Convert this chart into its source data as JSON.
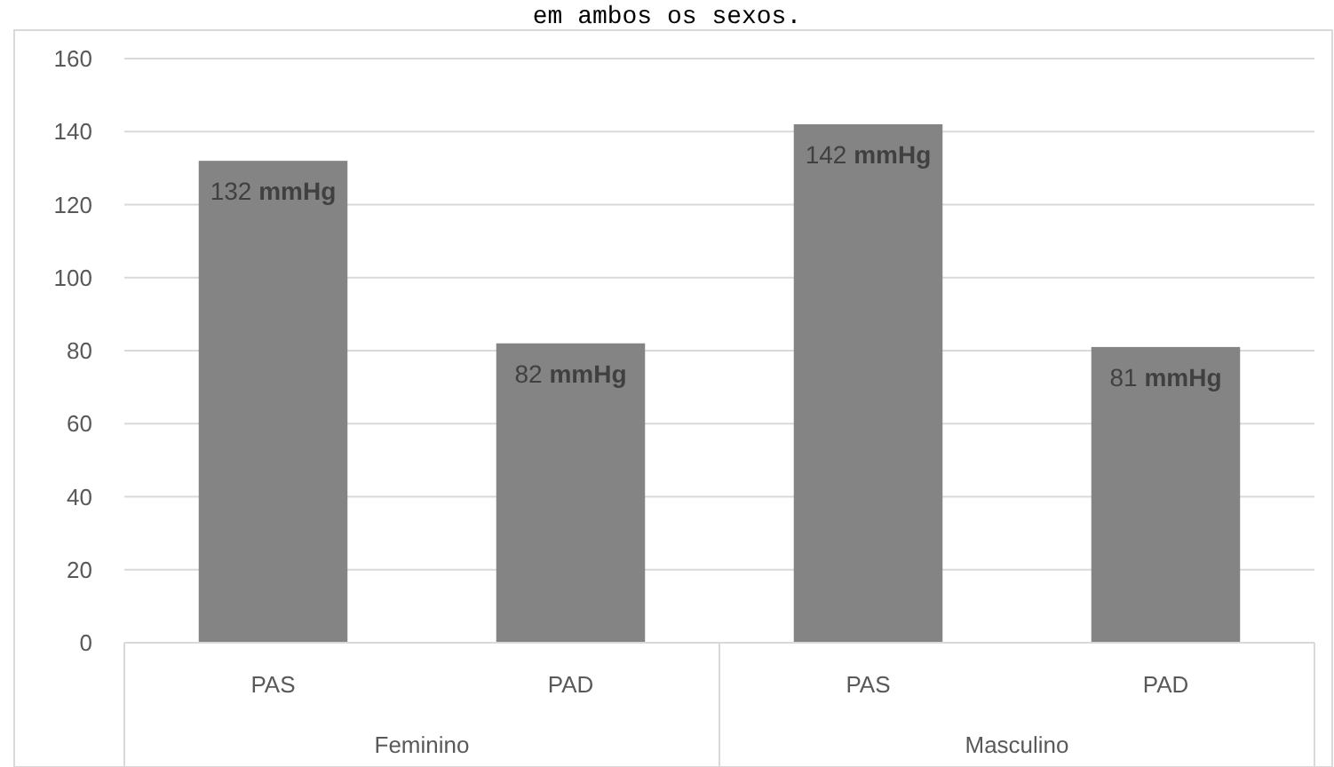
{
  "chart_data": {
    "type": "bar",
    "title": "em ambos os sexos.",
    "categories": [
      "PAS",
      "PAD",
      "PAS",
      "PAD"
    ],
    "values": [
      132,
      82,
      142,
      81
    ],
    "value_labels": [
      "132 mmHg",
      "82 mmHg",
      "142 mmHg",
      "81 mmHg"
    ],
    "color": "#848484",
    "ylim": [
      0,
      160
    ],
    "yticks": [
      0,
      20,
      40,
      60,
      80,
      100,
      120,
      140,
      160
    ],
    "grid": "y",
    "annotations": [
      "Feminino",
      "Masculino"
    ]
  }
}
